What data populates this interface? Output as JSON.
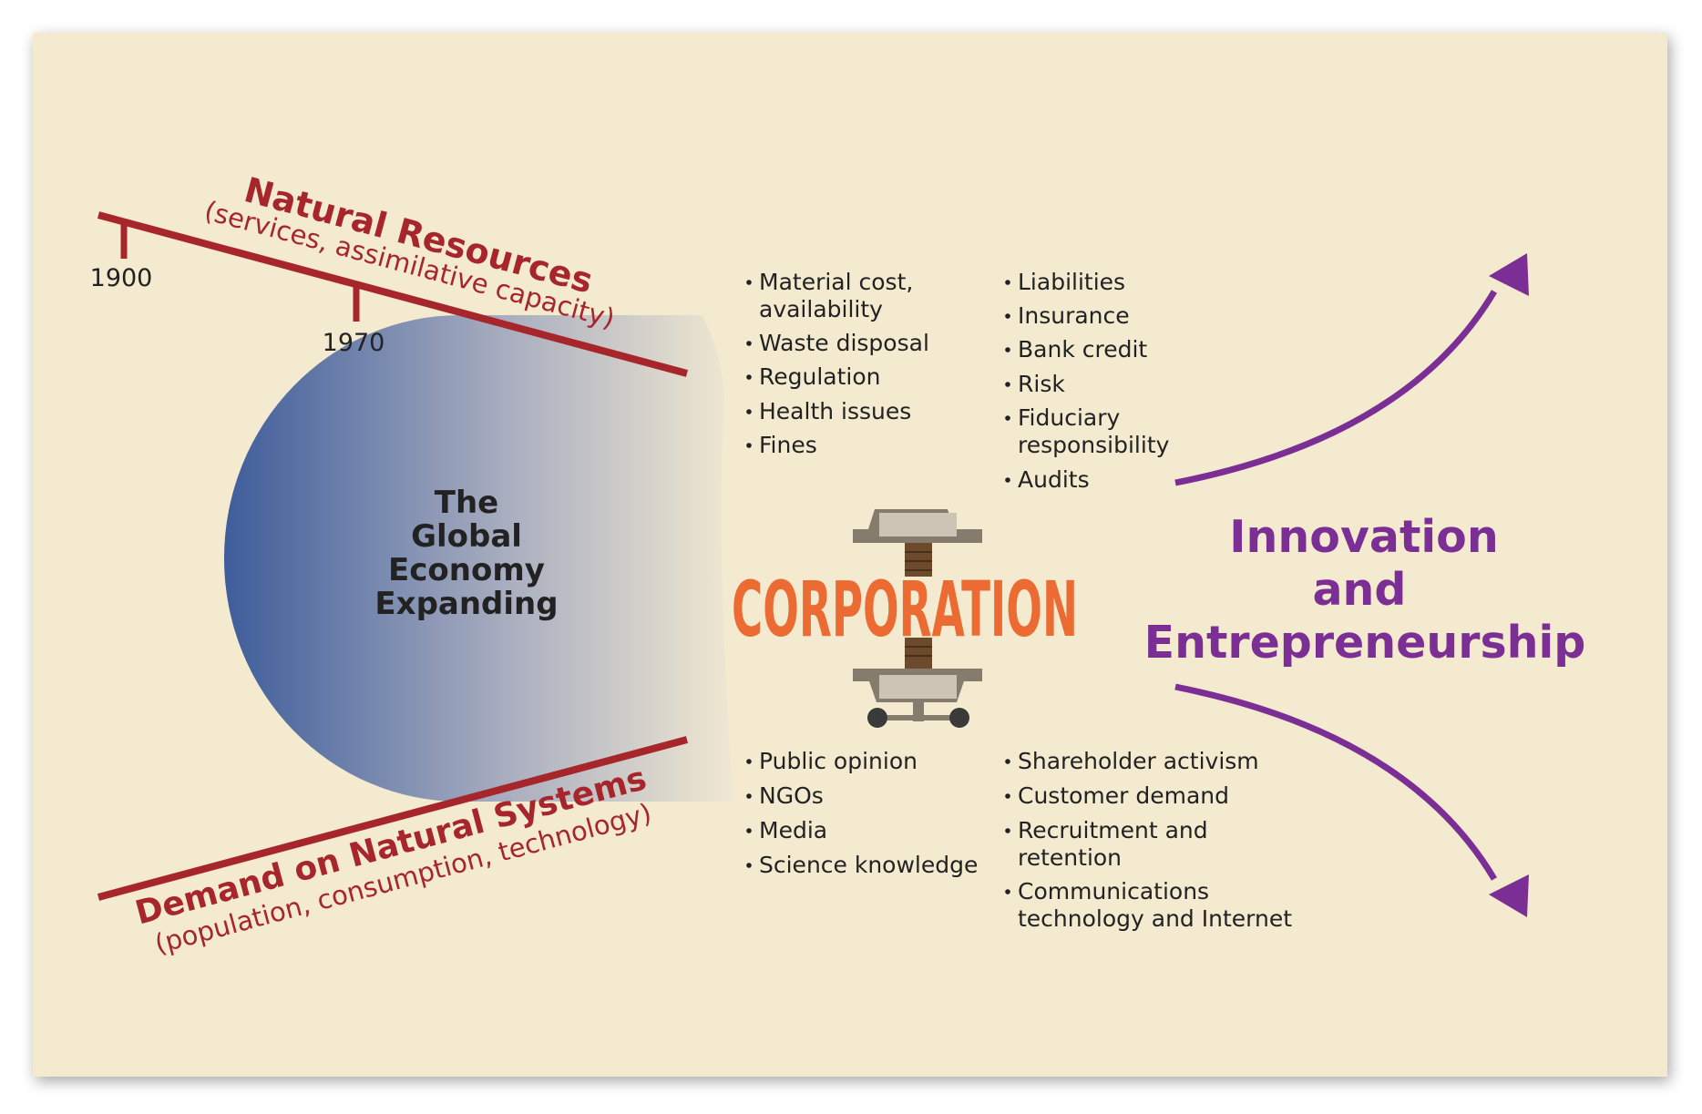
{
  "colors": {
    "background": "#f3ead0",
    "resource_red": "#a6262c",
    "corporation_orange": "#ec6b32",
    "innovation_purple": "#7b2f95",
    "sphere_blue": "#3e5d9b",
    "machine_gray": "#857c6d",
    "machine_light": "#cdc4b5",
    "bolt_brown": "#6d4a2b",
    "text_dark": "#222222"
  },
  "top_line": {
    "title": "Natural Resources",
    "subtitle": "(services, assimilative capacity)",
    "tick_1900": "1900",
    "tick_1970": "1970"
  },
  "bottom_line": {
    "title": "Demand on Natural Systems",
    "subtitle": "(population, consumption, technology)"
  },
  "sphere": {
    "label_lines": [
      "The",
      "Global",
      "Economy",
      "Expanding"
    ]
  },
  "corporation": {
    "label": "CORPORATION"
  },
  "pressures": {
    "top_left": [
      "Material cost,",
      "availability",
      "Waste disposal",
      "Regulation",
      "Health issues",
      "Fines"
    ],
    "top_right": [
      "Liabilities",
      "Insurance",
      "Bank credit",
      "Risk",
      "Fiduciary",
      "responsibility",
      "Audits"
    ],
    "bottom_left": [
      "Public opinion",
      "NGOs",
      "Media",
      "Science knowledge"
    ],
    "bottom_right": [
      "Shareholder activism",
      "Customer demand",
      "Recruitment and",
      "retention",
      "Communications",
      "technology and Internet"
    ]
  },
  "innovation": {
    "label_lines": [
      "Innovation",
      "and",
      "Entrepreneurship"
    ]
  }
}
